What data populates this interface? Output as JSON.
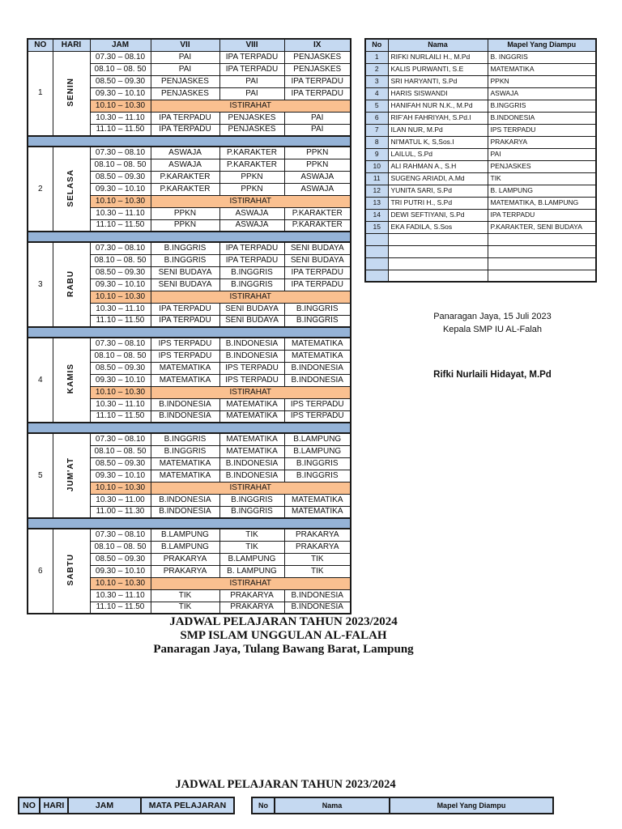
{
  "colors": {
    "header_fill": "#c5d9f1",
    "day_separator_fill": "#95b3d7",
    "break_fill": "#fac090",
    "border": "#1a1a1a"
  },
  "schedule": {
    "headers": [
      "NO",
      "HARI",
      "JAM",
      "VII",
      "VIII",
      "IX"
    ],
    "break_label": "ISTIRAHAT",
    "days": [
      {
        "no": "1",
        "name": "SENIN",
        "rows": [
          {
            "time": "07.30 – 08.10",
            "vii": "PAI",
            "viii": "IPA TERPADU",
            "ix": "PENJASKES"
          },
          {
            "time": "08.10 – 08. 50",
            "vii": "PAI",
            "viii": "IPA TERPADU",
            "ix": "PENJASKES"
          },
          {
            "time": "08.50 – 09.30",
            "vii": "PENJASKES",
            "viii": "PAI",
            "ix": "IPA TERPADU"
          },
          {
            "time": "09.30 – 10.10",
            "vii": "PENJASKES",
            "viii": "PAI",
            "ix": "IPA TERPADU"
          },
          {
            "time": "10.10 – 10.30",
            "break": true
          },
          {
            "time": "10.30 – 11.10",
            "vii": "IPA TERPADU",
            "viii": "PENJASKES",
            "ix": "PAI"
          },
          {
            "time": "11.10 – 11.50",
            "vii": "IPA TERPADU",
            "viii": "PENJASKES",
            "ix": "PAI"
          }
        ]
      },
      {
        "no": "2",
        "name": "SELASA",
        "rows": [
          {
            "time": "07.30 – 08.10",
            "vii": "ASWAJA",
            "viii": "P.KARAKTER",
            "ix": "PPKN"
          },
          {
            "time": "08.10 – 08. 50",
            "vii": "ASWAJA",
            "viii": "P.KARAKTER",
            "ix": "PPKN"
          },
          {
            "time": "08.50 – 09.30",
            "vii": "P.KARAKTER",
            "viii": "PPKN",
            "ix": "ASWAJA"
          },
          {
            "time": "09.30 – 10.10",
            "vii": "P.KARAKTER",
            "viii": "PPKN",
            "ix": "ASWAJA"
          },
          {
            "time": "10.10 – 10.30",
            "break": true
          },
          {
            "time": "10.30 – 11.10",
            "vii": "PPKN",
            "viii": "ASWAJA",
            "ix": "P.KARAKTER"
          },
          {
            "time": "11.10 – 11.50",
            "vii": "PPKN",
            "viii": "ASWAJA",
            "ix": "P.KARAKTER"
          }
        ]
      },
      {
        "no": "3",
        "name": "RABU",
        "rows": [
          {
            "time": "07.30 – 08.10",
            "vii": "B.INGGRIS",
            "viii": "IPA TERPADU",
            "ix": "SENI BUDAYA"
          },
          {
            "time": "08.10 – 08. 50",
            "vii": "B.INGGRIS",
            "viii": "IPA TERPADU",
            "ix": "SENI BUDAYA"
          },
          {
            "time": "08.50 – 09.30",
            "vii": "SENI BUDAYA",
            "viii": "B.INGGRIS",
            "ix": "IPA TERPADU"
          },
          {
            "time": "09.30 – 10.10",
            "vii": "SENI BUDAYA",
            "viii": "B.INGGRIS",
            "ix": "IPA TERPADU"
          },
          {
            "time": "10.10 – 10.30",
            "break": true
          },
          {
            "time": "10.30 – 11.10",
            "vii": "IPA TERPADU",
            "viii": "SENI BUDAYA",
            "ix": "B.INGGRIS"
          },
          {
            "time": "11.10 – 11.50",
            "vii": "IPA TERPADU",
            "viii": "SENI BUDAYA",
            "ix": "B.INGGRIS"
          }
        ]
      },
      {
        "no": "4",
        "name": "KAMIS",
        "rows": [
          {
            "time": "07.30 – 08.10",
            "vii": "IPS TERPADU",
            "viii": "B.INDONESIA",
            "ix": "MATEMATIKA"
          },
          {
            "time": "08.10 – 08. 50",
            "vii": "IPS TERPADU",
            "viii": "B.INDONESIA",
            "ix": "MATEMATIKA"
          },
          {
            "time": "08.50 – 09.30",
            "vii": "MATEMATIKA",
            "viii": "IPS TERPADU",
            "ix": "B.INDONESIA"
          },
          {
            "time": "09.30 – 10.10",
            "vii": "MATEMATIKA",
            "viii": "IPS TERPADU",
            "ix": "B.INDONESIA"
          },
          {
            "time": "10.10 – 10.30",
            "break": true
          },
          {
            "time": "10.30 – 11.10",
            "vii": "B.INDONESIA",
            "viii": "MATEMATIKA",
            "ix": "IPS TERPADU"
          },
          {
            "time": "11.10 – 11.50",
            "vii": "B.INDONESIA",
            "viii": "MATEMATIKA",
            "ix": "IPS TERPADU"
          }
        ]
      },
      {
        "no": "5",
        "name": "JUM'AT",
        "rows": [
          {
            "time": "07.30 – 08.10",
            "vii": "B.INGGRIS",
            "viii": "MATEMATIKA",
            "ix": "B.LAMPUNG"
          },
          {
            "time": "08.10 – 08. 50",
            "vii": "B.INGGRIS",
            "viii": "MATEMATIKA",
            "ix": "B.LAMPUNG"
          },
          {
            "time": "08.50 – 09.30",
            "vii": "MATEMATIKA",
            "viii": "B.INDONESIA",
            "ix": "B.INGGRIS"
          },
          {
            "time": "09.30 – 10.10",
            "vii": "MATEMATIKA",
            "viii": "B.INDONESIA",
            "ix": "B.INGGRIS"
          },
          {
            "time": "10.10 – 10.30",
            "break": true
          },
          {
            "time": "10.30 – 11.00",
            "vii": "B.INDONESIA",
            "viii": "B.INGGRIS",
            "ix": "MATEMATIKA"
          },
          {
            "time": "11.00 – 11.30",
            "vii": "B.INDONESIA",
            "viii": "B.INGGRIS",
            "ix": "MATEMATIKA"
          }
        ]
      },
      {
        "no": "6",
        "name": "SABTU",
        "rows": [
          {
            "time": "07.30 – 08.10",
            "vii": "B.LAMPUNG",
            "viii": "TIK",
            "ix": "PRAKARYA"
          },
          {
            "time": "08.10 – 08. 50",
            "vii": "B.LAMPUNG",
            "viii": "TIK",
            "ix": "PRAKARYA"
          },
          {
            "time": "08.50 – 09.30",
            "vii": "PRAKARYA",
            "viii": "B.LAMPUNG",
            "ix": "TIK"
          },
          {
            "time": "09.30 – 10.10",
            "vii": "PRAKARYA",
            "viii": "B. LAMPUNG",
            "ix": "TIK"
          },
          {
            "time": "10.10 – 10.30",
            "break": true
          },
          {
            "time": "10.30 – 11.10",
            "vii": "TIK",
            "viii": "PRAKARYA",
            "ix": "B.INDONESIA"
          },
          {
            "time": "11.10 – 11.50",
            "vii": "TIK",
            "viii": "PRAKARYA",
            "ix": "B.INDONESIA"
          }
        ]
      }
    ]
  },
  "teachers": {
    "headers": [
      "No",
      "Nama",
      "Mapel Yang Diampu"
    ],
    "rows": [
      {
        "no": "1",
        "nama": "RIFKI NURLAILI H., M.Pd",
        "mapel": "B. INGGRIS"
      },
      {
        "no": "2",
        "nama": "KALIS PURWANTI, S.E",
        "mapel": "MATEMATIKA"
      },
      {
        "no": "3",
        "nama": "SRI HARYANTI, S.Pd",
        "mapel": "PPKN"
      },
      {
        "no": "4",
        "nama": "HARIS SISWANDI",
        "mapel": "ASWAJA"
      },
      {
        "no": "5",
        "nama": "HANIFAH NUR N.K., M.Pd",
        "mapel": "B.INGGRIS"
      },
      {
        "no": "6",
        "nama": "RIF'AH FAHRIYAH, S.Pd.I",
        "mapel": "B.INDONESIA"
      },
      {
        "no": "7",
        "nama": "ILAN NUR, M.Pd",
        "mapel": "IPS TERPADU"
      },
      {
        "no": "8",
        "nama": "NI'MATUL K, S,Sos.I",
        "mapel": "PRAKARYA"
      },
      {
        "no": "9",
        "nama": "LAILUL, S.Pd",
        "mapel": "PAI"
      },
      {
        "no": "10",
        "nama": "ALI RAHMAN A., S.H",
        "mapel": "PENJASKES"
      },
      {
        "no": "11",
        "nama": "SUGENG ARIADI, A.Md",
        "mapel": "TIK"
      },
      {
        "no": "12",
        "nama": "YUNITA SARI, S.Pd",
        "mapel": "B. LAMPUNG"
      },
      {
        "no": "13",
        "nama": "TRI PUTRI H., S.Pd",
        "mapel": "MATEMATIKA, B.LAMPUNG"
      },
      {
        "no": "14",
        "nama": "DEWI SEFTIYANI, S.Pd",
        "mapel": "IPA TERPADU"
      },
      {
        "no": "15",
        "nama": "EKA FADILA, S.Sos",
        "mapel": "P.KARAKTER, SENI BUDAYA"
      }
    ],
    "empty_rows": 4
  },
  "signature": {
    "place_date": "Panaragan Jaya, 15 Juli 2023",
    "role": "Kepala SMP IU AL-Falah",
    "name": "Rifki Nurlaili Hidayat, M.Pd"
  },
  "title_block": {
    "line1": "JADWAL PELAJARAN TAHUN 2023/2024",
    "line2": "SMP ISLAM UNGGULAN AL-FALAH",
    "line3": "Panaragan Jaya, Tulang Bawang Barat, Lampung"
  },
  "page2": {
    "title": "JADWAL PELAJARAN TAHUN 2023/2024",
    "schedule_headers": [
      "NO",
      "HARI",
      "JAM",
      "MATA PELAJARAN"
    ],
    "teacher_headers": [
      "No",
      "Nama",
      "Mapel Yang Diampu"
    ]
  }
}
